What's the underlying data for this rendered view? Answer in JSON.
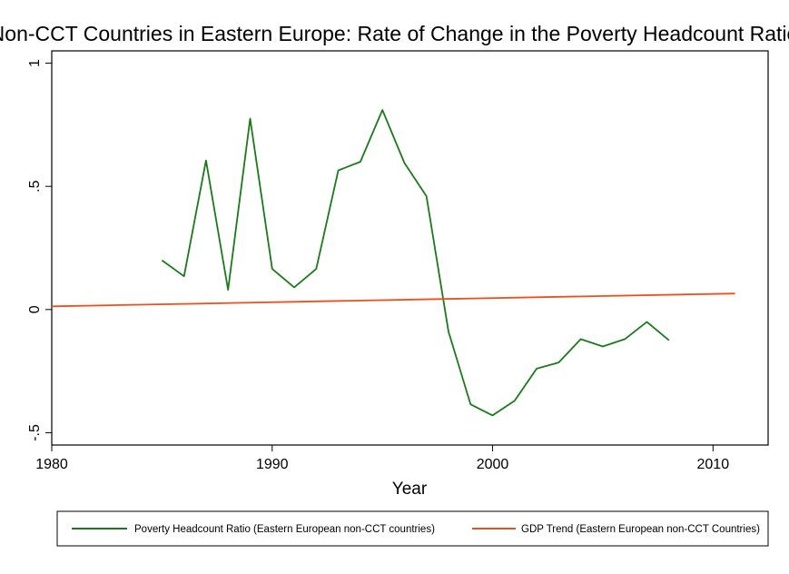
{
  "chart_data": {
    "type": "line",
    "title": "Non-CCT Countries in Eastern Europe: Rate of Change in the Poverty Headcount Ratio",
    "xlabel": "Year",
    "ylabel": "",
    "xlim": [
      1980,
      2012.5
    ],
    "ylim": [
      -0.55,
      1.05
    ],
    "x_ticks": [
      1980,
      1990,
      2000,
      2010
    ],
    "x_tick_labels": [
      "1980",
      "1990",
      "2000",
      "2010"
    ],
    "y_ticks": [
      -0.5,
      0,
      0.5,
      1
    ],
    "y_tick_labels": [
      "-.5",
      "0",
      ".5",
      "1"
    ],
    "grid": false,
    "legend_position": "bottom",
    "series": [
      {
        "name": "Poverty Headcount Ratio (Eastern European non-CCT countries)",
        "color": "#1a7a1a",
        "x": [
          1985,
          1986,
          1987,
          1988,
          1989,
          1990,
          1991,
          1992,
          1993,
          1994,
          1995,
          1996,
          1997,
          1998,
          1999,
          2000,
          2001,
          2002,
          2003,
          2004,
          2005,
          2006,
          2007,
          2008
        ],
        "y": [
          0.2,
          0.135,
          0.605,
          0.08,
          0.775,
          0.165,
          0.09,
          0.165,
          0.565,
          0.6,
          0.81,
          0.595,
          0.46,
          -0.09,
          -0.385,
          -0.43,
          -0.37,
          -0.24,
          -0.215,
          -0.12,
          -0.15,
          -0.12,
          -0.05,
          -0.125
        ]
      },
      {
        "name": "GDP Trend (Eastern European non-CCT Countries)",
        "color": "#ee4e1a",
        "x": [
          1980,
          2011
        ],
        "y": [
          0.013,
          0.065
        ]
      }
    ]
  }
}
